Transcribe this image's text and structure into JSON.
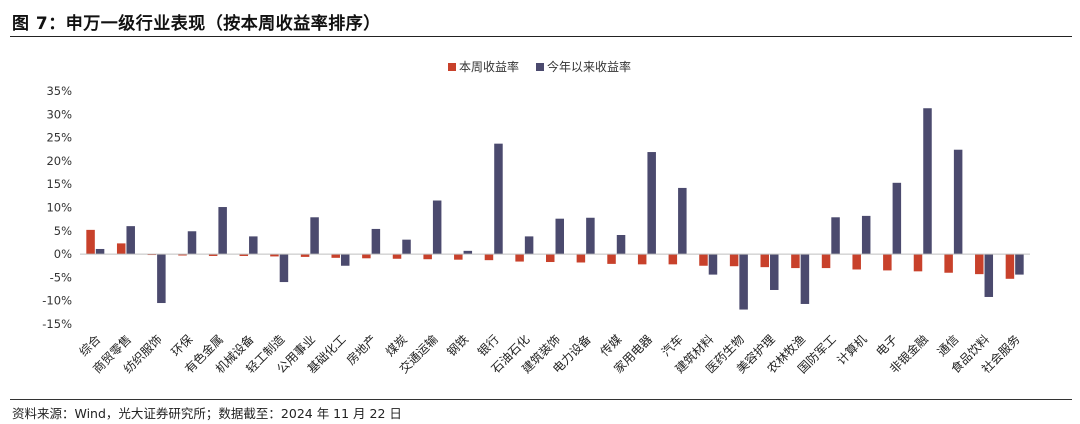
{
  "title": "图 7：申万一级行业表现（按本周收益率排序）",
  "source": "资料来源：Wind，光大证券研究所；数据截至：2024 年 11 月 22 日",
  "chart_data": {
    "type": "bar",
    "ylim": [
      -15,
      35
    ],
    "yticks": [
      "35%",
      "30%",
      "25%",
      "20%",
      "15%",
      "10%",
      "5%",
      "0%",
      "-5%",
      "-10%",
      "-15%"
    ],
    "ytick_values": [
      35,
      30,
      25,
      20,
      15,
      10,
      5,
      0,
      -5,
      -10,
      -15
    ],
    "grid": false,
    "legend_position": "top-center",
    "categories": [
      "综合",
      "商贸零售",
      "纺织服饰",
      "环保",
      "有色金属",
      "机械设备",
      "轻工制造",
      "公用事业",
      "基础化工",
      "房地产",
      "煤炭",
      "交通运输",
      "钢铁",
      "银行",
      "石油石化",
      "建筑装饰",
      "电力设备",
      "传媒",
      "家用电器",
      "汽车",
      "建筑材料",
      "医药生物",
      "美容护理",
      "农林牧渔",
      "国防军工",
      "计算机",
      "电子",
      "非银金融",
      "通信",
      "食品饮料",
      "社会服务"
    ],
    "series": [
      {
        "name": "本周收益率",
        "color": "#c8412b",
        "values": [
          5.2,
          2.3,
          -0.2,
          -0.3,
          -0.4,
          -0.4,
          -0.5,
          -0.6,
          -0.8,
          -0.9,
          -1.0,
          -1.1,
          -1.2,
          -1.3,
          -1.6,
          -1.7,
          -1.8,
          -2.1,
          -2.2,
          -2.2,
          -2.5,
          -2.6,
          -2.8,
          -3.0,
          -3.0,
          -3.3,
          -3.5,
          -3.7,
          -4.0,
          -4.3,
          -5.3
        ]
      },
      {
        "name": "今年以来收益率",
        "color": "#4b4a6e",
        "values": [
          1.1,
          6.0,
          -10.5,
          4.9,
          10.1,
          3.8,
          -6.0,
          7.9,
          -2.5,
          5.4,
          3.1,
          11.5,
          0.7,
          23.7,
          3.8,
          7.6,
          7.8,
          4.1,
          21.9,
          14.2,
          -4.4,
          -11.9,
          -7.7,
          -10.7,
          7.9,
          8.2,
          15.3,
          31.3,
          22.4,
          -9.2,
          -4.4
        ]
      }
    ]
  }
}
